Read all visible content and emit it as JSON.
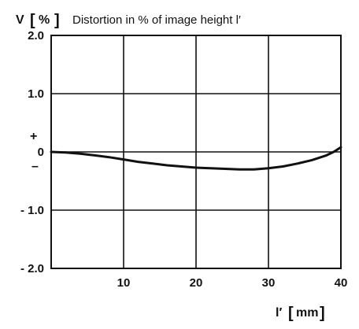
{
  "chart_data": {
    "type": "line",
    "ylabel": "V",
    "yunit": "%",
    "title": "Distortion in % of image height l′",
    "xlabel": "l′",
    "xunit": "mm",
    "xlim": [
      0,
      40
    ],
    "ylim": [
      -2.0,
      2.0
    ],
    "x_ticks": [
      10,
      20,
      30,
      40
    ],
    "x_tick_labels": [
      "10",
      "20",
      "30",
      "40"
    ],
    "y_ticks": [
      2.0,
      1.0,
      0,
      -1.0,
      -2.0
    ],
    "y_tick_labels": [
      "2.0",
      "1.0",
      "0",
      "- 1.0",
      "- 2.0"
    ],
    "plus_sign": "+",
    "minus_sign": "–",
    "grid": true,
    "series": [
      {
        "x": [
          0,
          2,
          4,
          6,
          8,
          10,
          12,
          14,
          16,
          18,
          20,
          22,
          24,
          26,
          28,
          30,
          32,
          34,
          36,
          38,
          39,
          40
        ],
        "y": [
          0,
          -0.01,
          -0.03,
          -0.06,
          -0.09,
          -0.13,
          -0.17,
          -0.2,
          -0.23,
          -0.25,
          -0.27,
          -0.28,
          -0.29,
          -0.3,
          -0.3,
          -0.28,
          -0.25,
          -0.2,
          -0.14,
          -0.06,
          0.0,
          0.08
        ]
      }
    ]
  }
}
